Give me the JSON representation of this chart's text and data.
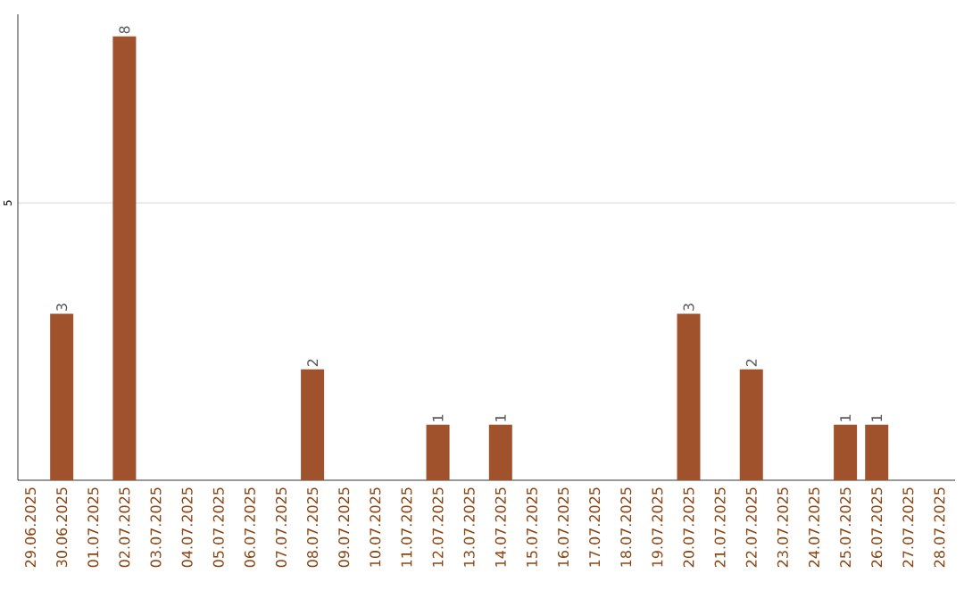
{
  "chart_data": {
    "type": "bar",
    "categories": [
      "29.06.2025",
      "30.06.2025",
      "01.07.2025",
      "02.07.2025",
      "03.07.2025",
      "04.07.2025",
      "05.07.2025",
      "06.07.2025",
      "07.07.2025",
      "08.07.2025",
      "09.07.2025",
      "10.07.2025",
      "11.07.2025",
      "12.07.2025",
      "13.07.2025",
      "14.07.2025",
      "15.07.2025",
      "16.07.2025",
      "17.07.2025",
      "18.07.2025",
      "19.07.2025",
      "20.07.2025",
      "21.07.2025",
      "22.07.2025",
      "23.07.2025",
      "24.07.2025",
      "25.07.2025",
      "26.07.2025",
      "27.07.2025",
      "28.07.2025"
    ],
    "values": [
      0,
      3,
      0,
      8,
      0,
      0,
      0,
      0,
      0,
      2,
      0,
      0,
      0,
      1,
      0,
      1,
      0,
      0,
      0,
      0,
      0,
      3,
      0,
      2,
      0,
      0,
      1,
      1,
      0,
      0
    ],
    "value_labels": [
      null,
      "3",
      null,
      "8",
      null,
      null,
      null,
      null,
      null,
      "2",
      null,
      null,
      null,
      "1",
      null,
      "1",
      null,
      null,
      null,
      null,
      null,
      "3",
      null,
      "2",
      null,
      null,
      "1",
      "1",
      null,
      null
    ],
    "color": "#a0522d",
    "ylim": [
      0,
      8.4
    ],
    "yticks": [
      5
    ],
    "grid": "y"
  }
}
